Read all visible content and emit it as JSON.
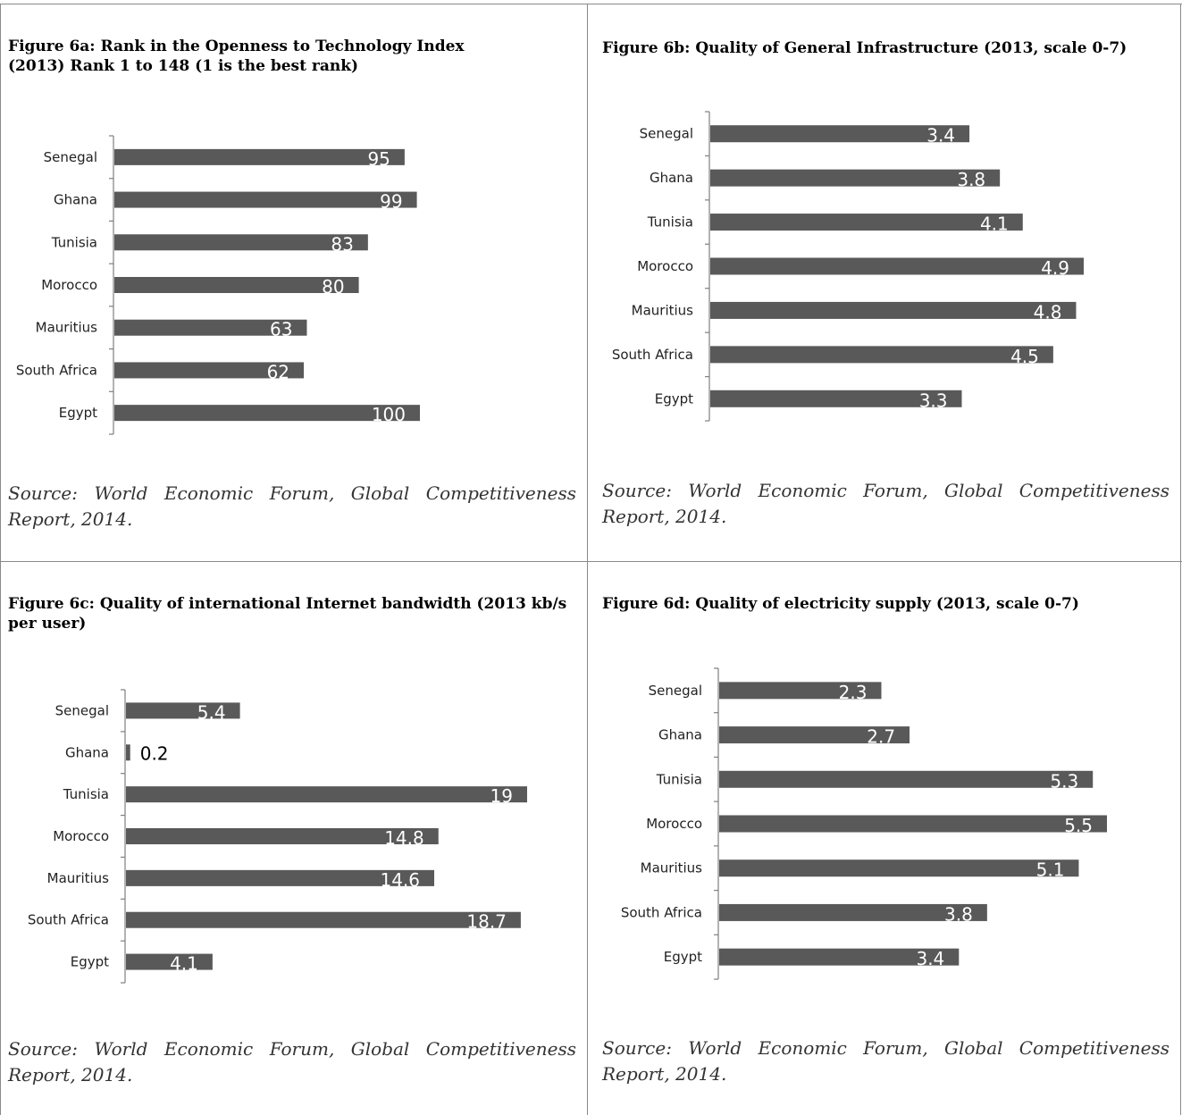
{
  "colors": {
    "bar": "#595959",
    "axis": "#7f7f7f",
    "border": "#8a8a8a"
  },
  "panels": [
    {
      "title": "Figure 6a: Rank in the Openness to Technology Index (2013) Rank 1 to 148 (1 is the best rank)",
      "source": "Source: World Economic Forum, Global Competitiveness Report, 2014."
    },
    {
      "title": "Figure 6b: Quality of General Infrastructure  (2013, scale 0-7)",
      "source": "Source: World Economic Forum, Global Competitiveness Report, 2014."
    },
    {
      "title": "Figure 6c: Quality of international Internet bandwidth (2013 kb/s per user)",
      "source": "Source: World Economic Forum, Global Competitiveness Report, 2014."
    },
    {
      "title": "Figure 6d: Quality of electricity supply (2013, scale 0-7)",
      "source": "Source: World Economic Forum, Global Competitiveness Report, 2014."
    }
  ],
  "chart_data": [
    {
      "type": "bar",
      "orientation": "horizontal",
      "title": "Figure 6a: Rank in the Openness to Technology Index (2013) Rank 1 to 148 (1 is the best rank)",
      "categories": [
        "Senegal",
        "Ghana",
        "Tunisia",
        "Morocco",
        "Mauritius",
        "South Africa",
        "Egypt"
      ],
      "values": [
        95,
        99,
        83,
        80,
        63,
        62,
        100
      ],
      "labels": [
        "95",
        "99",
        "83",
        "80",
        "63",
        "62",
        "100"
      ],
      "xlim": [
        0,
        100
      ],
      "grid": false,
      "legend": "none"
    },
    {
      "type": "bar",
      "orientation": "horizontal",
      "title": "Figure 6b: Quality of General Infrastructure  (2013, scale 0-7)",
      "categories": [
        "Senegal",
        "Ghana",
        "Tunisia",
        "Morocco",
        "Mauritius",
        "South Africa",
        "Egypt"
      ],
      "values": [
        3.4,
        3.8,
        4.1,
        4.9,
        4.8,
        4.5,
        3.3
      ],
      "labels": [
        "3.4",
        "3.8",
        "4.1",
        "4.9",
        "4.8",
        "4.5",
        "3.3"
      ],
      "xlim": [
        0,
        4.9
      ],
      "grid": false,
      "legend": "none"
    },
    {
      "type": "bar",
      "orientation": "horizontal",
      "title": "Figure 6c: Quality of international Internet bandwidth (2013 kb/s per user)",
      "categories": [
        "Senegal",
        "Ghana",
        "Tunisia",
        "Morocco",
        "Mauritius",
        "South Africa",
        "Egypt"
      ],
      "values": [
        5.4,
        0.2,
        19,
        14.8,
        14.6,
        18.7,
        4.1
      ],
      "labels": [
        "5.4",
        "0.2",
        "19",
        "14.8",
        "14.6",
        "18.7",
        "4.1"
      ],
      "xlim": [
        0,
        19
      ],
      "grid": false,
      "legend": "none"
    },
    {
      "type": "bar",
      "orientation": "horizontal",
      "title": "Figure 6d: Quality of electricity supply (2013, scale 0-7)",
      "categories": [
        "Senegal",
        "Ghana",
        "Tunisia",
        "Morocco",
        "Mauritius",
        "South Africa",
        "Egypt"
      ],
      "values": [
        2.3,
        2.7,
        5.3,
        5.5,
        5.1,
        3.8,
        3.4
      ],
      "labels": [
        "2.3",
        "2.7",
        "5.3",
        "5.5",
        "5.1",
        "3.8",
        "3.4"
      ],
      "xlim": [
        0,
        5.5
      ],
      "grid": false,
      "legend": "none"
    }
  ]
}
